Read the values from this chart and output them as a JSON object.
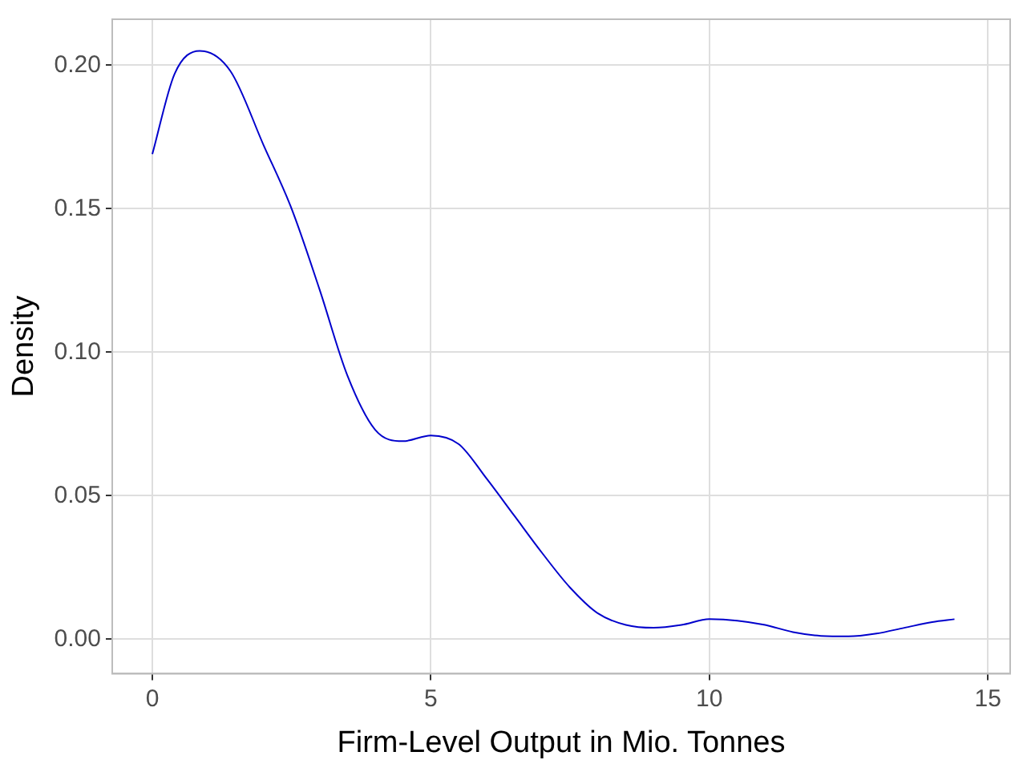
{
  "chart_data": {
    "type": "line",
    "xlabel": "Firm-Level Output in Mio. Tonnes",
    "ylabel": "Density",
    "x": [
      0,
      0.4,
      0.85,
      1.4,
      2,
      2.5,
      3,
      3.5,
      4,
      4.5,
      5,
      5.5,
      6,
      6.5,
      7,
      7.5,
      8,
      8.5,
      9,
      9.5,
      10,
      10.5,
      11,
      11.5,
      12,
      12.5,
      13,
      13.5,
      14,
      14.4
    ],
    "series": [
      {
        "color": "#0000cc",
        "values": [
          0.169,
          0.197,
          0.205,
          0.198,
          0.172,
          0.15,
          0.122,
          0.092,
          0.073,
          0.069,
          0.071,
          0.068,
          0.056,
          0.043,
          0.03,
          0.018,
          0.009,
          0.005,
          0.004,
          0.005,
          0.007,
          0.0065,
          0.005,
          0.0025,
          0.0012,
          0.001,
          0.002,
          0.004,
          0.006,
          0.007
        ]
      }
    ],
    "xlim": [
      -0.72,
      15.4
    ],
    "ylim": [
      -0.012,
      0.216
    ],
    "xticks": [
      0,
      5,
      10,
      15
    ],
    "yticks": [
      {
        "value": 0,
        "label": "0.00"
      },
      {
        "value": 0.05,
        "label": "0.05"
      },
      {
        "value": 0.1,
        "label": "0.10"
      },
      {
        "value": 0.15,
        "label": "0.15"
      },
      {
        "value": 0.2,
        "label": "0.20"
      }
    ],
    "grid": true,
    "legend": false,
    "marker": "none",
    "line_style": "solid"
  }
}
